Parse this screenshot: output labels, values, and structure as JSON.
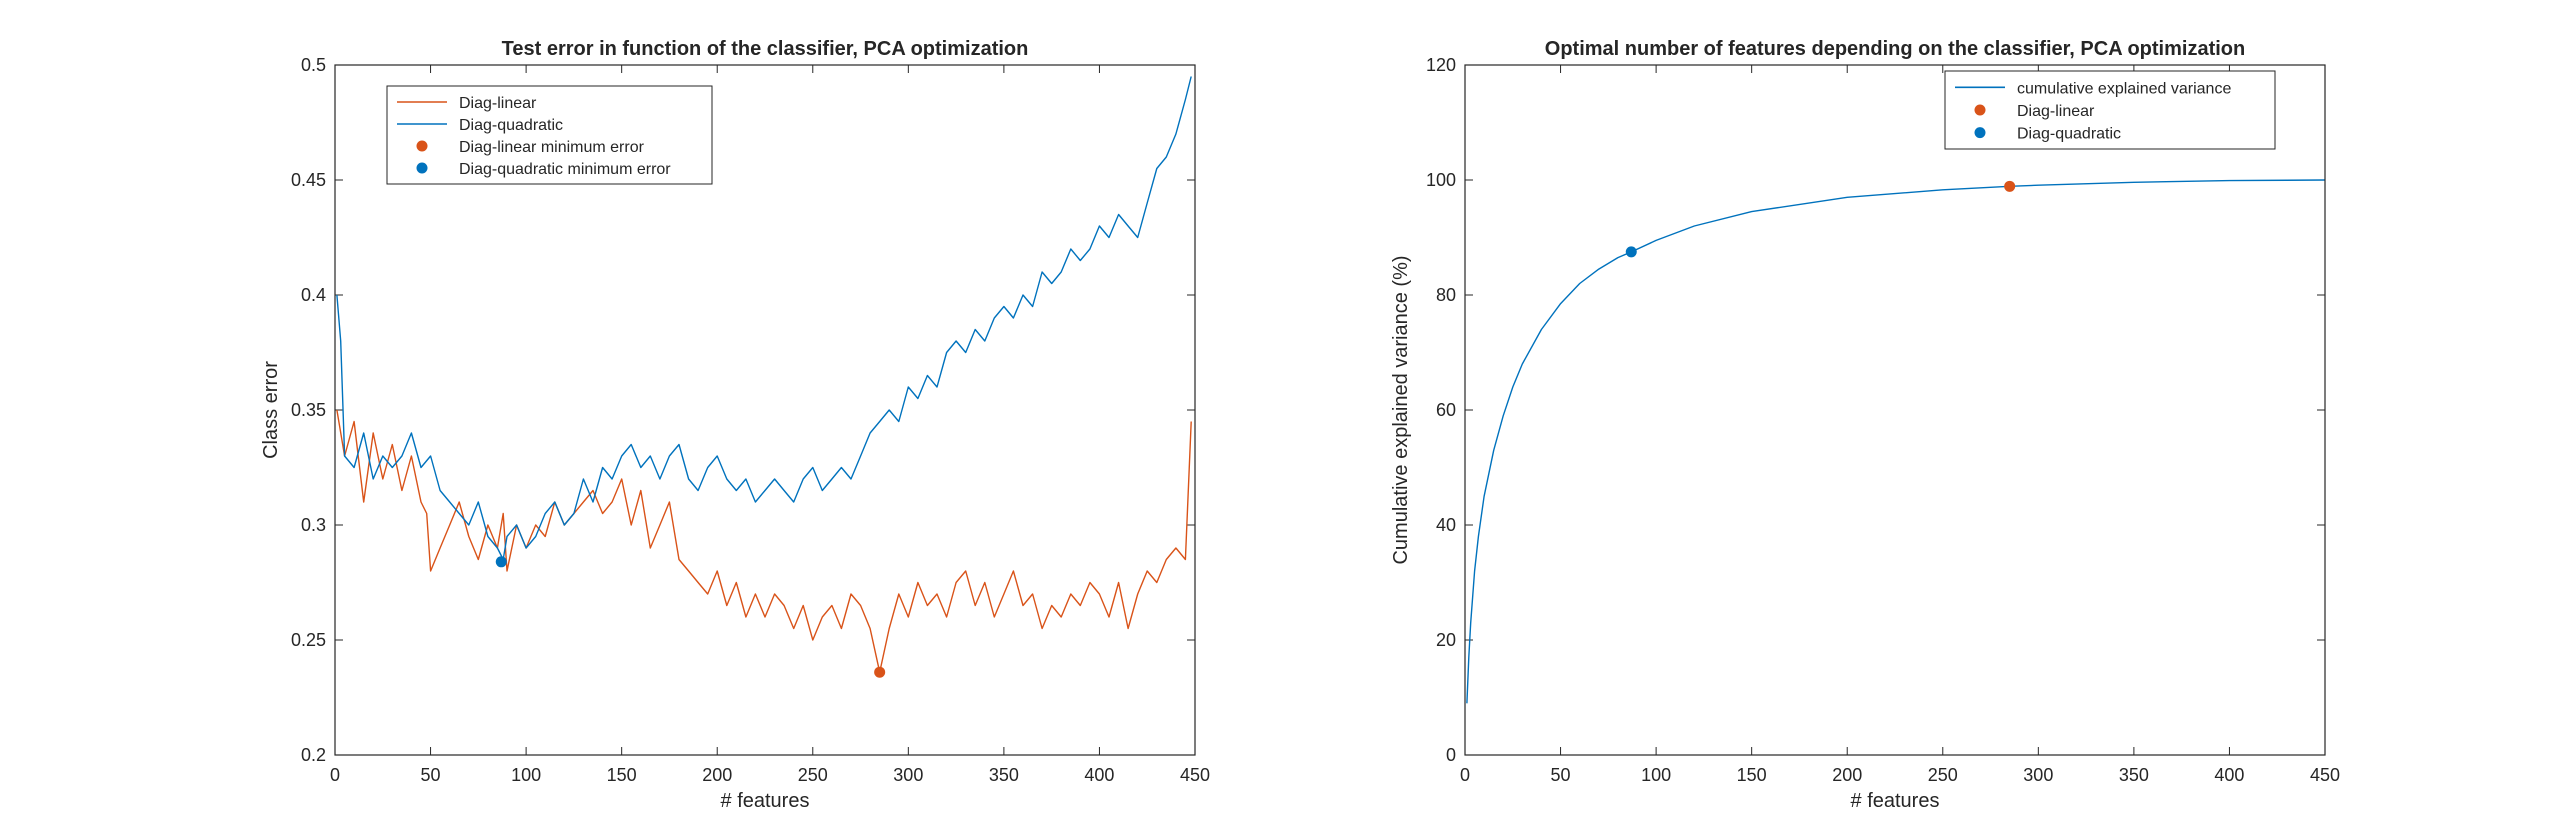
{
  "chart_data": [
    {
      "type": "line",
      "title": "Test error in function of the classifier, PCA optimization",
      "xlabel": "# features",
      "ylabel": "Class error",
      "xlim": [
        0,
        450
      ],
      "ylim": [
        0.2,
        0.5
      ],
      "xticks": [
        "0",
        "50",
        "100",
        "150",
        "200",
        "250",
        "300",
        "350",
        "400",
        "450"
      ],
      "yticks": [
        "0.2",
        "0.25",
        "0.3",
        "0.35",
        "0.4",
        "0.45",
        "0.5"
      ],
      "grid": false,
      "legend_position": "top-left",
      "series": [
        {
          "name": "Diag-linear",
          "kind": "line",
          "color": "#D95319",
          "x": [
            1,
            5,
            10,
            15,
            20,
            25,
            30,
            35,
            40,
            45,
            48,
            50,
            55,
            60,
            65,
            70,
            75,
            80,
            85,
            88,
            90,
            95,
            100,
            105,
            110,
            115,
            120,
            125,
            130,
            135,
            140,
            145,
            150,
            155,
            160,
            165,
            170,
            175,
            180,
            185,
            190,
            195,
            200,
            205,
            210,
            215,
            220,
            225,
            230,
            235,
            240,
            245,
            250,
            255,
            260,
            265,
            270,
            275,
            280,
            285,
            290,
            295,
            300,
            305,
            310,
            315,
            320,
            325,
            330,
            335,
            340,
            345,
            350,
            355,
            360,
            365,
            370,
            375,
            380,
            385,
            390,
            395,
            400,
            405,
            410,
            415,
            420,
            425,
            430,
            435,
            440,
            445,
            448
          ],
          "values": [
            0.35,
            0.33,
            0.345,
            0.31,
            0.34,
            0.32,
            0.335,
            0.315,
            0.33,
            0.31,
            0.305,
            0.28,
            0.29,
            0.3,
            0.31,
            0.295,
            0.285,
            0.3,
            0.29,
            0.305,
            0.28,
            0.3,
            0.29,
            0.3,
            0.295,
            0.31,
            0.3,
            0.305,
            0.31,
            0.315,
            0.305,
            0.31,
            0.32,
            0.3,
            0.315,
            0.29,
            0.3,
            0.31,
            0.285,
            0.28,
            0.275,
            0.27,
            0.28,
            0.265,
            0.275,
            0.26,
            0.27,
            0.26,
            0.27,
            0.265,
            0.255,
            0.265,
            0.25,
            0.26,
            0.265,
            0.255,
            0.27,
            0.265,
            0.255,
            0.236,
            0.255,
            0.27,
            0.26,
            0.275,
            0.265,
            0.27,
            0.26,
            0.275,
            0.28,
            0.265,
            0.275,
            0.26,
            0.27,
            0.28,
            0.265,
            0.27,
            0.255,
            0.265,
            0.26,
            0.27,
            0.265,
            0.275,
            0.27,
            0.26,
            0.275,
            0.255,
            0.27,
            0.28,
            0.275,
            0.285,
            0.29,
            0.285,
            0.345
          ]
        },
        {
          "name": "Diag-quadratic",
          "kind": "line",
          "color": "#0072BD",
          "x": [
            1,
            3,
            5,
            10,
            15,
            20,
            25,
            30,
            35,
            40,
            45,
            50,
            55,
            60,
            65,
            70,
            75,
            80,
            85,
            88,
            90,
            95,
            100,
            105,
            110,
            115,
            120,
            125,
            130,
            135,
            140,
            145,
            150,
            155,
            160,
            165,
            170,
            175,
            180,
            185,
            190,
            195,
            200,
            205,
            210,
            215,
            220,
            225,
            230,
            235,
            240,
            245,
            250,
            255,
            260,
            265,
            270,
            275,
            280,
            285,
            290,
            295,
            300,
            305,
            310,
            315,
            320,
            325,
            330,
            335,
            340,
            345,
            350,
            355,
            360,
            365,
            370,
            375,
            380,
            385,
            390,
            395,
            400,
            405,
            410,
            415,
            420,
            425,
            430,
            435,
            440,
            445,
            448
          ],
          "values": [
            0.4,
            0.38,
            0.33,
            0.325,
            0.34,
            0.32,
            0.33,
            0.325,
            0.33,
            0.34,
            0.325,
            0.33,
            0.315,
            0.31,
            0.305,
            0.3,
            0.31,
            0.295,
            0.29,
            0.285,
            0.295,
            0.3,
            0.29,
            0.295,
            0.305,
            0.31,
            0.3,
            0.305,
            0.32,
            0.31,
            0.325,
            0.32,
            0.33,
            0.335,
            0.325,
            0.33,
            0.32,
            0.33,
            0.335,
            0.32,
            0.315,
            0.325,
            0.33,
            0.32,
            0.315,
            0.32,
            0.31,
            0.315,
            0.32,
            0.315,
            0.31,
            0.32,
            0.325,
            0.315,
            0.32,
            0.325,
            0.32,
            0.33,
            0.34,
            0.345,
            0.35,
            0.345,
            0.36,
            0.355,
            0.365,
            0.36,
            0.375,
            0.38,
            0.375,
            0.385,
            0.38,
            0.39,
            0.395,
            0.39,
            0.4,
            0.395,
            0.41,
            0.405,
            0.41,
            0.42,
            0.415,
            0.42,
            0.43,
            0.425,
            0.435,
            0.43,
            0.425,
            0.44,
            0.455,
            0.46,
            0.47,
            0.485,
            0.495
          ]
        },
        {
          "name": "Diag-linear minimum error",
          "kind": "point",
          "color": "#D95319",
          "x": [
            285
          ],
          "values": [
            0.236
          ]
        },
        {
          "name": "Diag-quadratic minimum error",
          "kind": "point",
          "color": "#0072BD",
          "x": [
            87
          ],
          "values": [
            0.284
          ]
        }
      ]
    },
    {
      "type": "line",
      "title": "Optimal number of features depending on the classifier, PCA optimization",
      "xlabel": "# features",
      "ylabel": "Cumulative explained variance (%)",
      "xlim": [
        0,
        450
      ],
      "ylim": [
        0,
        120
      ],
      "xticks": [
        "0",
        "50",
        "100",
        "150",
        "200",
        "250",
        "300",
        "350",
        "400",
        "450"
      ],
      "yticks": [
        "0",
        "20",
        "40",
        "60",
        "80",
        "100",
        "120"
      ],
      "grid": false,
      "legend_position": "top-right",
      "series": [
        {
          "name": "cumulative explained variance",
          "kind": "line",
          "color": "#0072BD",
          "x": [
            1,
            2,
            3,
            5,
            7,
            10,
            15,
            20,
            25,
            30,
            40,
            50,
            60,
            70,
            80,
            87,
            100,
            120,
            150,
            200,
            250,
            285,
            300,
            350,
            400,
            450
          ],
          "values": [
            9,
            17,
            23,
            32,
            38,
            45,
            53,
            59,
            64,
            68,
            74,
            78.5,
            82,
            84.5,
            86.5,
            87.5,
            89.5,
            92,
            94.5,
            97,
            98.3,
            98.9,
            99.1,
            99.6,
            99.9,
            100
          ]
        },
        {
          "name": "Diag-linear",
          "kind": "point",
          "color": "#D95319",
          "x": [
            285
          ],
          "values": [
            98.9
          ]
        },
        {
          "name": "Diag-quadratic",
          "kind": "point",
          "color": "#0072BD",
          "x": [
            87
          ],
          "values": [
            87.5
          ]
        }
      ]
    }
  ]
}
